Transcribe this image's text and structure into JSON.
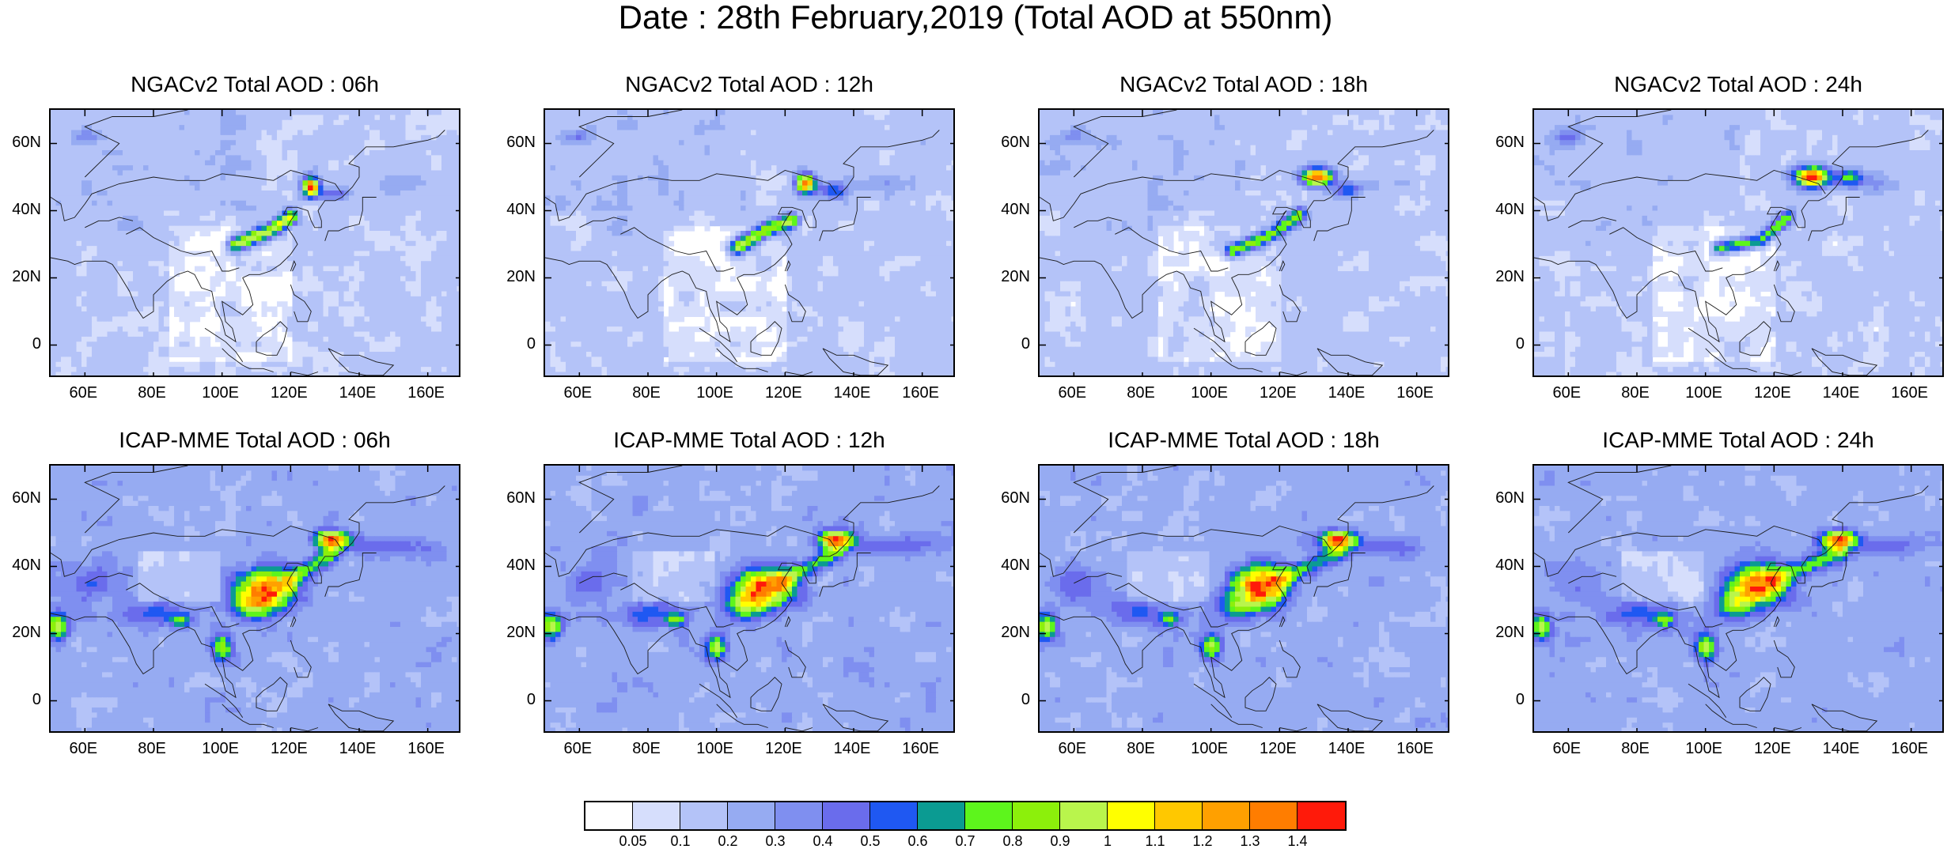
{
  "title": "Date : 28th February,2019 (Total AOD at 550nm)",
  "panels": [
    {
      "title": "NGACv2 Total AOD : 06h",
      "model": "NGACv2",
      "hour": "06h"
    },
    {
      "title": "NGACv2 Total AOD : 12h",
      "model": "NGACv2",
      "hour": "12h"
    },
    {
      "title": "NGACv2 Total AOD : 18h",
      "model": "NGACv2",
      "hour": "18h"
    },
    {
      "title": "NGACv2 Total AOD : 24h",
      "model": "NGACv2",
      "hour": "24h"
    },
    {
      "title": "ICAP-MME Total AOD : 06h",
      "model": "ICAP-MME",
      "hour": "06h"
    },
    {
      "title": "ICAP-MME Total AOD : 12h",
      "model": "ICAP-MME",
      "hour": "12h"
    },
    {
      "title": "ICAP-MME Total AOD : 18h",
      "model": "ICAP-MME",
      "hour": "18h"
    },
    {
      "title": "ICAP-MME Total AOD : 24h",
      "model": "ICAP-MME",
      "hour": "24h"
    }
  ],
  "axes": {
    "lon_range": [
      50,
      170
    ],
    "lat_range": [
      -10,
      70
    ],
    "xticks": [
      60,
      80,
      100,
      120,
      140,
      160
    ],
    "xtick_labels": [
      "60E",
      "80E",
      "100E",
      "120E",
      "140E",
      "160E"
    ],
    "yticks": [
      0,
      20,
      40,
      60
    ],
    "ytick_labels": [
      "0",
      "20N",
      "40N",
      "60N"
    ]
  },
  "colorbar": {
    "labels": [
      "0.05",
      "0.1",
      "0.2",
      "0.3",
      "0.4",
      "0.5",
      "0.6",
      "0.7",
      "0.8",
      "0.9",
      "1",
      "1.1",
      "1.2",
      "1.3",
      "1.4"
    ],
    "colors": [
      "#ffffff",
      "#d6defc",
      "#b4c3f8",
      "#96abf2",
      "#7f8ff0",
      "#6a6cec",
      "#1f58f2",
      "#0b9b92",
      "#5df51c",
      "#8cf00b",
      "#b9f54c",
      "#ffff00",
      "#ffc800",
      "#ffa000",
      "#ff7d00",
      "#ff1a0a"
    ]
  }
}
